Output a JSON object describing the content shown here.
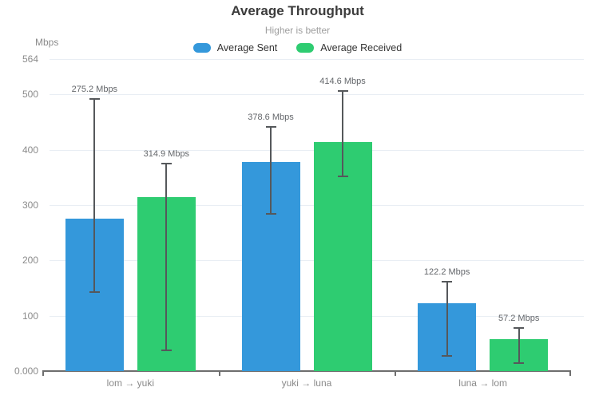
{
  "chart_data": {
    "type": "bar",
    "title": "Average Throughput",
    "subtitle": "Higher is better",
    "ylabel": "Mbps",
    "ylim": [
      0,
      564
    ],
    "grid": true,
    "legend_position": "top",
    "y_ticks": [
      {
        "value": 0,
        "label": "0.000"
      },
      {
        "value": 100,
        "label": "100"
      },
      {
        "value": 200,
        "label": "200"
      },
      {
        "value": 300,
        "label": "300"
      },
      {
        "value": 400,
        "label": "400"
      },
      {
        "value": 500,
        "label": "500"
      },
      {
        "value": 564,
        "label": "564"
      }
    ],
    "categories": [
      "lom → yuki",
      "yuki → luna",
      "luna → lom"
    ],
    "series": [
      {
        "name": "Average Sent",
        "color": "#3498db",
        "values": [
          275.2,
          378.6,
          122.2
        ],
        "value_labels": [
          "275.2 Mbps",
          "378.6 Mbps",
          "122.2 Mbps"
        ],
        "error_low": [
          142,
          283,
          26
        ],
        "error_high": [
          494,
          443,
          163
        ]
      },
      {
        "name": "Average Received",
        "color": "#2ecc71",
        "values": [
          314.9,
          414.6,
          57.2
        ],
        "value_labels": [
          "314.9 Mbps",
          "414.6 Mbps",
          "57.2 Mbps"
        ],
        "error_low": [
          36,
          350,
          13
        ],
        "error_high": [
          376,
          508,
          80
        ]
      }
    ],
    "colors": {
      "grid": "#e9eef4",
      "axis": "#6e6e6e",
      "error_bar": "#55585b",
      "tick_label": "#8b8b8b",
      "value_label": "#63666a",
      "title": "#3c3c3c",
      "subtitle": "#9e9e9e",
      "legend_text": "#333333"
    }
  }
}
